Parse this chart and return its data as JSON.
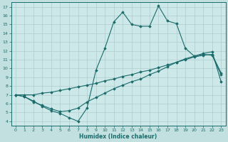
{
  "xlabel": "Humidex (Indice chaleur)",
  "xlim": [
    -0.5,
    23.5
  ],
  "ylim": [
    3.5,
    17.5
  ],
  "yticks": [
    4,
    5,
    6,
    7,
    8,
    9,
    10,
    11,
    12,
    13,
    14,
    15,
    16,
    17
  ],
  "xticks": [
    0,
    1,
    2,
    3,
    4,
    5,
    6,
    7,
    8,
    9,
    10,
    11,
    12,
    13,
    14,
    15,
    16,
    17,
    18,
    19,
    20,
    21,
    22,
    23
  ],
  "bg_color": "#c2e0e0",
  "plot_bg": "#cce8e8",
  "grid_color": "#b0cccc",
  "line_color": "#1a6b6b",
  "line1_x": [
    0,
    1,
    2,
    3,
    4,
    5,
    6,
    7,
    8,
    9,
    10,
    11,
    12,
    13,
    14,
    15,
    16,
    17,
    18,
    19,
    20,
    21,
    22,
    23
  ],
  "line1_y": [
    7.0,
    6.8,
    6.3,
    5.7,
    5.2,
    4.9,
    4.4,
    4.0,
    5.5,
    9.8,
    12.3,
    15.3,
    16.4,
    15.0,
    14.8,
    14.8,
    17.1,
    15.4,
    15.1,
    12.3,
    11.4,
    11.6,
    11.5,
    9.3
  ],
  "line2_x": [
    0,
    1,
    2,
    3,
    4,
    5,
    6,
    7,
    8,
    9,
    10,
    11,
    12,
    13,
    14,
    15,
    16,
    17,
    18,
    19,
    20,
    21,
    22,
    23
  ],
  "line2_y": [
    7.0,
    7.0,
    7.0,
    7.2,
    7.3,
    7.5,
    7.7,
    7.9,
    8.1,
    8.3,
    8.6,
    8.8,
    9.1,
    9.3,
    9.6,
    9.8,
    10.1,
    10.4,
    10.7,
    11.0,
    11.3,
    11.5,
    11.6,
    9.5
  ],
  "line3_x": [
    0,
    1,
    2,
    3,
    4,
    5,
    6,
    7,
    8,
    9,
    10,
    11,
    12,
    13,
    14,
    15,
    16,
    17,
    18,
    19,
    20,
    21,
    22,
    23
  ],
  "line3_y": [
    7.0,
    6.8,
    6.2,
    5.8,
    5.4,
    5.1,
    5.2,
    5.5,
    6.2,
    6.7,
    7.2,
    7.7,
    8.1,
    8.5,
    8.8,
    9.3,
    9.7,
    10.2,
    10.7,
    11.1,
    11.4,
    11.7,
    11.9,
    8.5
  ]
}
